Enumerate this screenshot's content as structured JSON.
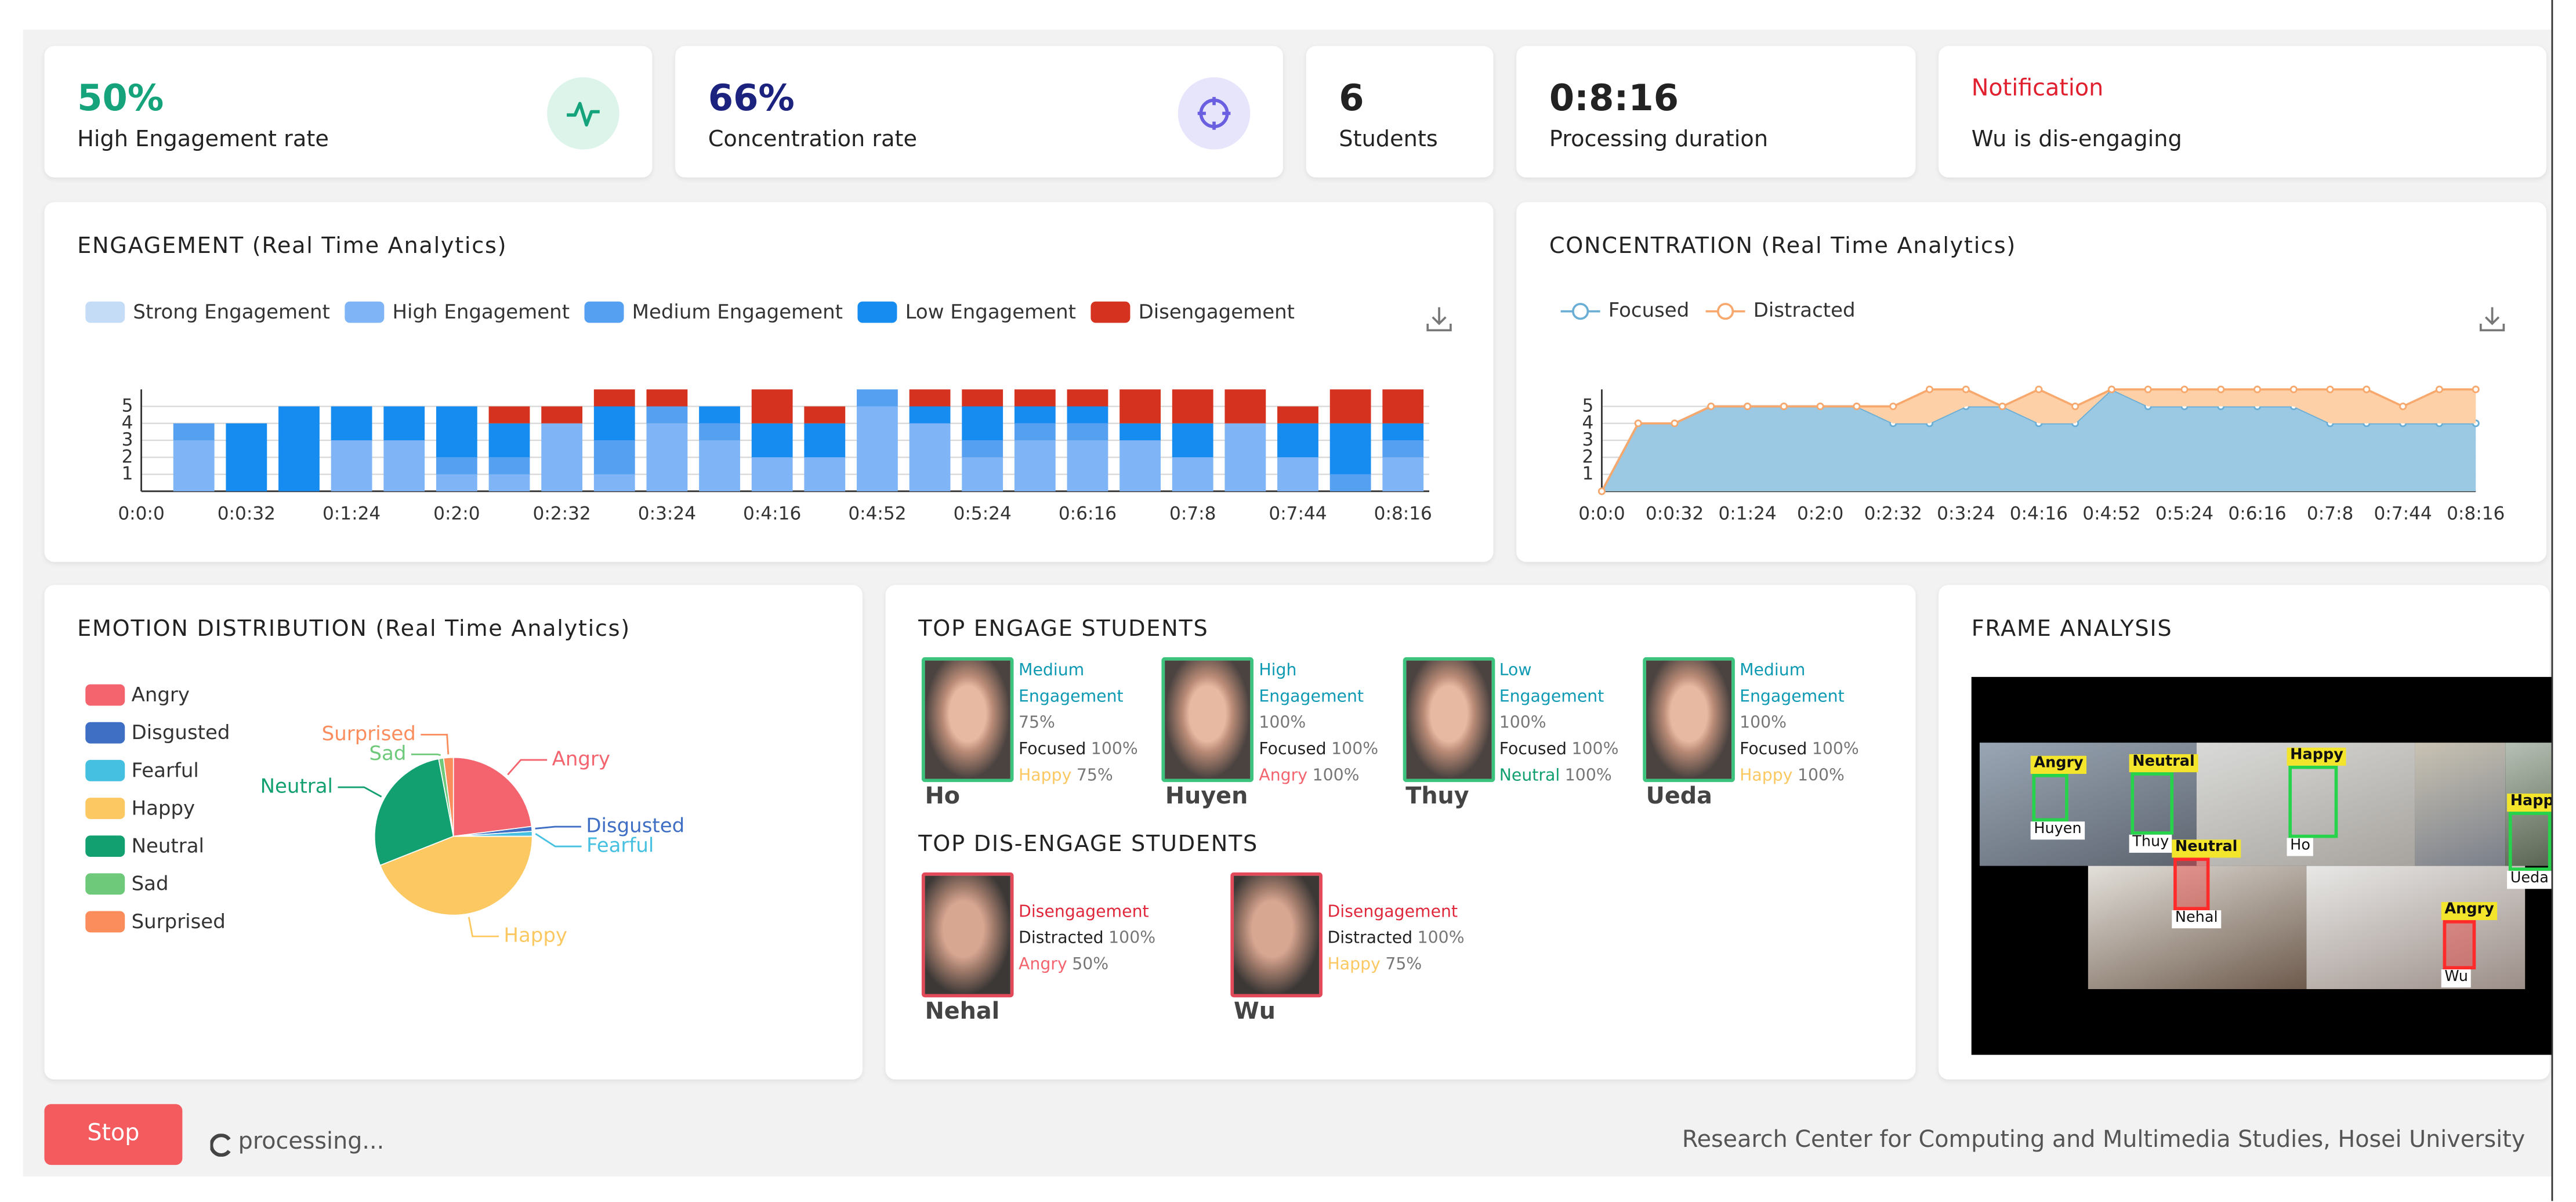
{
  "stats": [
    {
      "value": "50%",
      "label": "High Engagement rate"
    },
    {
      "value": "66%",
      "label": "Concentration rate"
    },
    {
      "value": "6",
      "label": "Students"
    },
    {
      "value": "0:8:16",
      "label": "Processing duration"
    }
  ],
  "notification": {
    "title": "Notification",
    "message": "Wu is dis-engaging"
  },
  "chart_data": [
    {
      "type": "bar",
      "title": "ENGAGEMENT (Real Time Analytics)",
      "categories": [
        "0:0:0",
        null,
        "0:0:32",
        null,
        "0:1:24",
        null,
        "0:2:0",
        null,
        "0:2:32",
        null,
        "0:3:24",
        null,
        "0:4:16",
        null,
        "0:4:52",
        null,
        "0:5:24",
        null,
        "0:6:16",
        null,
        "0:7:8",
        null,
        "0:7:44",
        null,
        "0:8:16"
      ],
      "series": [
        {
          "name": "Strong Engagement",
          "color": "#c5dcf7",
          "values": [
            0,
            0,
            0,
            0,
            0,
            0,
            0,
            0,
            0,
            0,
            0,
            0,
            0,
            0,
            0,
            0,
            0,
            0,
            0,
            0,
            0,
            0,
            0,
            0,
            0
          ]
        },
        {
          "name": "High Engagement",
          "color": "#7fb5f6",
          "values": [
            0,
            3,
            0,
            0,
            3,
            3,
            1,
            1,
            4,
            1,
            4,
            3,
            2,
            2,
            5,
            4,
            2,
            3,
            3,
            3,
            2,
            4,
            2,
            0,
            2
          ]
        },
        {
          "name": "Medium Engagement",
          "color": "#56a0f1",
          "values": [
            0,
            1,
            0,
            0,
            0,
            0,
            1,
            1,
            0,
            2,
            1,
            1,
            0,
            0,
            1,
            0,
            1,
            1,
            1,
            0,
            0,
            0,
            0,
            1,
            1
          ]
        },
        {
          "name": "Low Engagement",
          "color": "#168bf0",
          "values": [
            0,
            0,
            4,
            5,
            2,
            2,
            3,
            2,
            0,
            2,
            0,
            1,
            2,
            2,
            0,
            1,
            2,
            1,
            1,
            1,
            2,
            0,
            2,
            3,
            1
          ]
        },
        {
          "name": "Disengagement",
          "color": "#d5321f",
          "values": [
            0,
            0,
            0,
            0,
            0,
            0,
            0,
            1,
            1,
            1,
            1,
            0,
            2,
            1,
            0,
            1,
            1,
            1,
            1,
            2,
            2,
            2,
            1,
            2,
            2
          ]
        }
      ],
      "ylim": [
        0,
        6
      ],
      "yticks": [
        1,
        2,
        3,
        4,
        5
      ],
      "grid": true
    },
    {
      "type": "area",
      "title": "CONCENTRATION (Real Time Analytics)",
      "categories": [
        "0:0:0",
        null,
        "0:0:32",
        null,
        "0:1:24",
        null,
        "0:2:0",
        null,
        "0:2:32",
        null,
        "0:3:24",
        null,
        "0:4:16",
        null,
        "0:4:52",
        null,
        "0:5:24",
        null,
        "0:6:16",
        null,
        "0:7:8",
        null,
        "0:7:44",
        null,
        "0:8:16"
      ],
      "series": [
        {
          "name": "Focused",
          "color": "#6aaed6",
          "fill": "#9bc9e3",
          "values": [
            0,
            4,
            4,
            5,
            5,
            5,
            5,
            5,
            4,
            4,
            5,
            5,
            4,
            4,
            6,
            5,
            5,
            5,
            5,
            5,
            4,
            4,
            4,
            4,
            4
          ]
        },
        {
          "name": "Distracted",
          "color": "#f8a86c",
          "fill": "#fdd0a8",
          "values": [
            0,
            0,
            0,
            0,
            0,
            0,
            0,
            0,
            1,
            2,
            1,
            0,
            2,
            1,
            0,
            1,
            1,
            1,
            1,
            1,
            2,
            2,
            1,
            2,
            2
          ]
        }
      ],
      "ylim": [
        0,
        6
      ],
      "yticks": [
        1,
        2,
        3,
        4,
        5
      ],
      "grid": true
    },
    {
      "type": "pie",
      "title": "EMOTION DISTRIBUTION (Real Time Analytics)",
      "categories": [
        "Angry",
        "Disgusted",
        "Fearful",
        "Happy",
        "Neutral",
        "Sad",
        "Surprised"
      ],
      "values": [
        23,
        1,
        1,
        44,
        28,
        1,
        2
      ],
      "colors": [
        "#f4646e",
        "#3f6fc4",
        "#46c0e0",
        "#fcc862",
        "#12a070",
        "#6ec97a",
        "#fb8d5d"
      ]
    }
  ],
  "students": {
    "top_engage_title": "TOP ENGAGE STUDENTS",
    "top_engage": [
      {
        "name": "Ho",
        "engagement": "Medium Engagement",
        "engagement_value": "75%",
        "attention": "Focused",
        "attention_value": "100%",
        "emotion": "Happy",
        "emotion_value": "75%"
      },
      {
        "name": "Huyen",
        "engagement": "High Engagement",
        "engagement_value": "100%",
        "attention": "Focused",
        "attention_value": "100%",
        "emotion": "Angry",
        "emotion_value": "100%"
      },
      {
        "name": "Thuy",
        "engagement": "Low Engagement",
        "engagement_value": "100%",
        "attention": "Focused",
        "attention_value": "100%",
        "emotion": "Neutral",
        "emotion_value": "100%"
      },
      {
        "name": "Ueda",
        "engagement": "Medium Engagement",
        "engagement_value": "100%",
        "attention": "Focused",
        "attention_value": "100%",
        "emotion": "Happy",
        "emotion_value": "100%"
      }
    ],
    "top_disengage_title": "TOP DIS-ENGAGE STUDENTS",
    "top_disengage": [
      {
        "name": "Nehal",
        "engagement": "Disengagement",
        "attention": "Distracted",
        "attention_value": "100%",
        "emotion": "Angry",
        "emotion_value": "50%"
      },
      {
        "name": "Wu",
        "engagement": "Disengagement",
        "attention": "Distracted",
        "attention_value": "100%",
        "emotion": "Happy",
        "emotion_value": "75%"
      }
    ]
  },
  "frame_analysis": {
    "title": "FRAME ANALYSIS",
    "detections": [
      {
        "name": "Huyen",
        "emotion": "Angry"
      },
      {
        "name": "Thuy",
        "emotion": "Neutral"
      },
      {
        "name": "Ho",
        "emotion": "Happy"
      },
      {
        "name": "Ueda",
        "emotion": "Happy"
      },
      {
        "name": "Nehal",
        "emotion": "Neutral"
      },
      {
        "name": "Wu",
        "emotion": "Angry"
      }
    ]
  },
  "footer": {
    "button": "Stop",
    "status": "processing...",
    "credit": "Research Center for Computing and Multimedia Studies, Hosei University"
  }
}
